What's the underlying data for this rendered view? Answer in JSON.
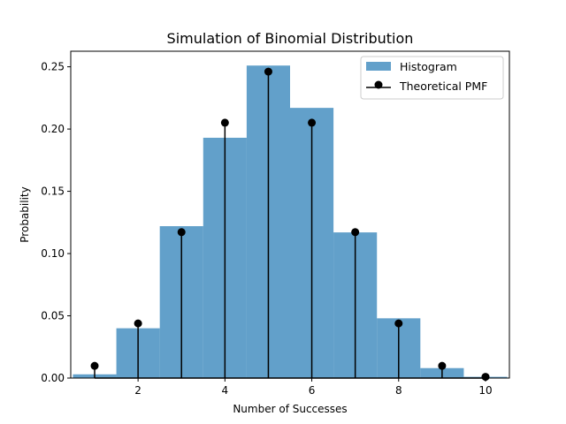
{
  "chart_data": {
    "type": "bar",
    "title": "Simulation of Binomial Distribution",
    "xlabel": "Number of Successes",
    "ylabel": "Probability",
    "xlim": [
      0.45,
      10.55
    ],
    "ylim": [
      0,
      0.2625
    ],
    "xticks": [
      2,
      4,
      6,
      8,
      10
    ],
    "xtick_labels": [
      "2",
      "4",
      "6",
      "8",
      "10"
    ],
    "yticks": [
      0,
      0.05,
      0.1,
      0.15,
      0.2,
      0.25
    ],
    "ytick_labels": [
      "0.00",
      "0.05",
      "0.10",
      "0.15",
      "0.20",
      "0.25"
    ],
    "grid": false,
    "legend_position": "top-right",
    "histogram": {
      "name": "Histogram",
      "color": "#1f77b4",
      "alpha": 0.7,
      "bin_edges": [
        0.5,
        1.5,
        2.5,
        3.5,
        4.5,
        5.5,
        6.5,
        7.5,
        8.5,
        9.5,
        10.5
      ],
      "values": [
        0.003,
        0.04,
        0.122,
        0.193,
        0.251,
        0.217,
        0.117,
        0.048,
        0.008,
        0.001
      ]
    },
    "pmf": {
      "name": "Theoretical PMF",
      "color": "#000000",
      "x": [
        1,
        2,
        3,
        4,
        5,
        6,
        7,
        8,
        9,
        10
      ],
      "values": [
        0.0098,
        0.0439,
        0.1172,
        0.2051,
        0.2461,
        0.2051,
        0.1172,
        0.0439,
        0.0098,
        0.001
      ]
    }
  }
}
